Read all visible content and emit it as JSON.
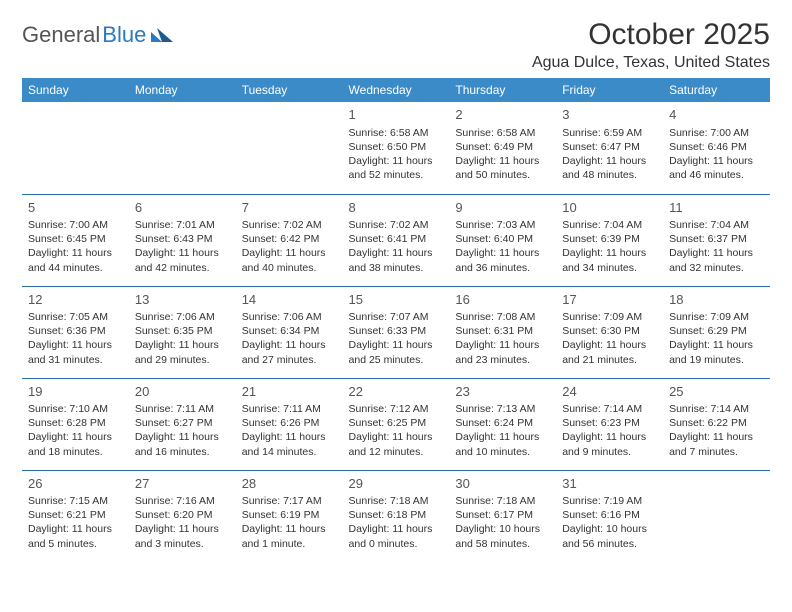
{
  "logo": {
    "text1": "General",
    "text2": "Blue"
  },
  "header": {
    "month_title": "October 2025",
    "location": "Agua Dulce, Texas, United States"
  },
  "colors": {
    "header_bg": "#3b8bc9",
    "header_text": "#ffffff",
    "row_border": "#2a6fa8",
    "logo_gray": "#555555",
    "logo_blue": "#2a7ac0",
    "text": "#333333"
  },
  "weekdays": [
    "Sunday",
    "Monday",
    "Tuesday",
    "Wednesday",
    "Thursday",
    "Friday",
    "Saturday"
  ],
  "weeks": [
    [
      {
        "day": "",
        "sunrise": "",
        "sunset": "",
        "daylight": ""
      },
      {
        "day": "",
        "sunrise": "",
        "sunset": "",
        "daylight": ""
      },
      {
        "day": "",
        "sunrise": "",
        "sunset": "",
        "daylight": ""
      },
      {
        "day": "1",
        "sunrise": "Sunrise: 6:58 AM",
        "sunset": "Sunset: 6:50 PM",
        "daylight": "Daylight: 11 hours and 52 minutes."
      },
      {
        "day": "2",
        "sunrise": "Sunrise: 6:58 AM",
        "sunset": "Sunset: 6:49 PM",
        "daylight": "Daylight: 11 hours and 50 minutes."
      },
      {
        "day": "3",
        "sunrise": "Sunrise: 6:59 AM",
        "sunset": "Sunset: 6:47 PM",
        "daylight": "Daylight: 11 hours and 48 minutes."
      },
      {
        "day": "4",
        "sunrise": "Sunrise: 7:00 AM",
        "sunset": "Sunset: 6:46 PM",
        "daylight": "Daylight: 11 hours and 46 minutes."
      }
    ],
    [
      {
        "day": "5",
        "sunrise": "Sunrise: 7:00 AM",
        "sunset": "Sunset: 6:45 PM",
        "daylight": "Daylight: 11 hours and 44 minutes."
      },
      {
        "day": "6",
        "sunrise": "Sunrise: 7:01 AM",
        "sunset": "Sunset: 6:43 PM",
        "daylight": "Daylight: 11 hours and 42 minutes."
      },
      {
        "day": "7",
        "sunrise": "Sunrise: 7:02 AM",
        "sunset": "Sunset: 6:42 PM",
        "daylight": "Daylight: 11 hours and 40 minutes."
      },
      {
        "day": "8",
        "sunrise": "Sunrise: 7:02 AM",
        "sunset": "Sunset: 6:41 PM",
        "daylight": "Daylight: 11 hours and 38 minutes."
      },
      {
        "day": "9",
        "sunrise": "Sunrise: 7:03 AM",
        "sunset": "Sunset: 6:40 PM",
        "daylight": "Daylight: 11 hours and 36 minutes."
      },
      {
        "day": "10",
        "sunrise": "Sunrise: 7:04 AM",
        "sunset": "Sunset: 6:39 PM",
        "daylight": "Daylight: 11 hours and 34 minutes."
      },
      {
        "day": "11",
        "sunrise": "Sunrise: 7:04 AM",
        "sunset": "Sunset: 6:37 PM",
        "daylight": "Daylight: 11 hours and 32 minutes."
      }
    ],
    [
      {
        "day": "12",
        "sunrise": "Sunrise: 7:05 AM",
        "sunset": "Sunset: 6:36 PM",
        "daylight": "Daylight: 11 hours and 31 minutes."
      },
      {
        "day": "13",
        "sunrise": "Sunrise: 7:06 AM",
        "sunset": "Sunset: 6:35 PM",
        "daylight": "Daylight: 11 hours and 29 minutes."
      },
      {
        "day": "14",
        "sunrise": "Sunrise: 7:06 AM",
        "sunset": "Sunset: 6:34 PM",
        "daylight": "Daylight: 11 hours and 27 minutes."
      },
      {
        "day": "15",
        "sunrise": "Sunrise: 7:07 AM",
        "sunset": "Sunset: 6:33 PM",
        "daylight": "Daylight: 11 hours and 25 minutes."
      },
      {
        "day": "16",
        "sunrise": "Sunrise: 7:08 AM",
        "sunset": "Sunset: 6:31 PM",
        "daylight": "Daylight: 11 hours and 23 minutes."
      },
      {
        "day": "17",
        "sunrise": "Sunrise: 7:09 AM",
        "sunset": "Sunset: 6:30 PM",
        "daylight": "Daylight: 11 hours and 21 minutes."
      },
      {
        "day": "18",
        "sunrise": "Sunrise: 7:09 AM",
        "sunset": "Sunset: 6:29 PM",
        "daylight": "Daylight: 11 hours and 19 minutes."
      }
    ],
    [
      {
        "day": "19",
        "sunrise": "Sunrise: 7:10 AM",
        "sunset": "Sunset: 6:28 PM",
        "daylight": "Daylight: 11 hours and 18 minutes."
      },
      {
        "day": "20",
        "sunrise": "Sunrise: 7:11 AM",
        "sunset": "Sunset: 6:27 PM",
        "daylight": "Daylight: 11 hours and 16 minutes."
      },
      {
        "day": "21",
        "sunrise": "Sunrise: 7:11 AM",
        "sunset": "Sunset: 6:26 PM",
        "daylight": "Daylight: 11 hours and 14 minutes."
      },
      {
        "day": "22",
        "sunrise": "Sunrise: 7:12 AM",
        "sunset": "Sunset: 6:25 PM",
        "daylight": "Daylight: 11 hours and 12 minutes."
      },
      {
        "day": "23",
        "sunrise": "Sunrise: 7:13 AM",
        "sunset": "Sunset: 6:24 PM",
        "daylight": "Daylight: 11 hours and 10 minutes."
      },
      {
        "day": "24",
        "sunrise": "Sunrise: 7:14 AM",
        "sunset": "Sunset: 6:23 PM",
        "daylight": "Daylight: 11 hours and 9 minutes."
      },
      {
        "day": "25",
        "sunrise": "Sunrise: 7:14 AM",
        "sunset": "Sunset: 6:22 PM",
        "daylight": "Daylight: 11 hours and 7 minutes."
      }
    ],
    [
      {
        "day": "26",
        "sunrise": "Sunrise: 7:15 AM",
        "sunset": "Sunset: 6:21 PM",
        "daylight": "Daylight: 11 hours and 5 minutes."
      },
      {
        "day": "27",
        "sunrise": "Sunrise: 7:16 AM",
        "sunset": "Sunset: 6:20 PM",
        "daylight": "Daylight: 11 hours and 3 minutes."
      },
      {
        "day": "28",
        "sunrise": "Sunrise: 7:17 AM",
        "sunset": "Sunset: 6:19 PM",
        "daylight": "Daylight: 11 hours and 1 minute."
      },
      {
        "day": "29",
        "sunrise": "Sunrise: 7:18 AM",
        "sunset": "Sunset: 6:18 PM",
        "daylight": "Daylight: 11 hours and 0 minutes."
      },
      {
        "day": "30",
        "sunrise": "Sunrise: 7:18 AM",
        "sunset": "Sunset: 6:17 PM",
        "daylight": "Daylight: 10 hours and 58 minutes."
      },
      {
        "day": "31",
        "sunrise": "Sunrise: 7:19 AM",
        "sunset": "Sunset: 6:16 PM",
        "daylight": "Daylight: 10 hours and 56 minutes."
      },
      {
        "day": "",
        "sunrise": "",
        "sunset": "",
        "daylight": ""
      }
    ]
  ]
}
